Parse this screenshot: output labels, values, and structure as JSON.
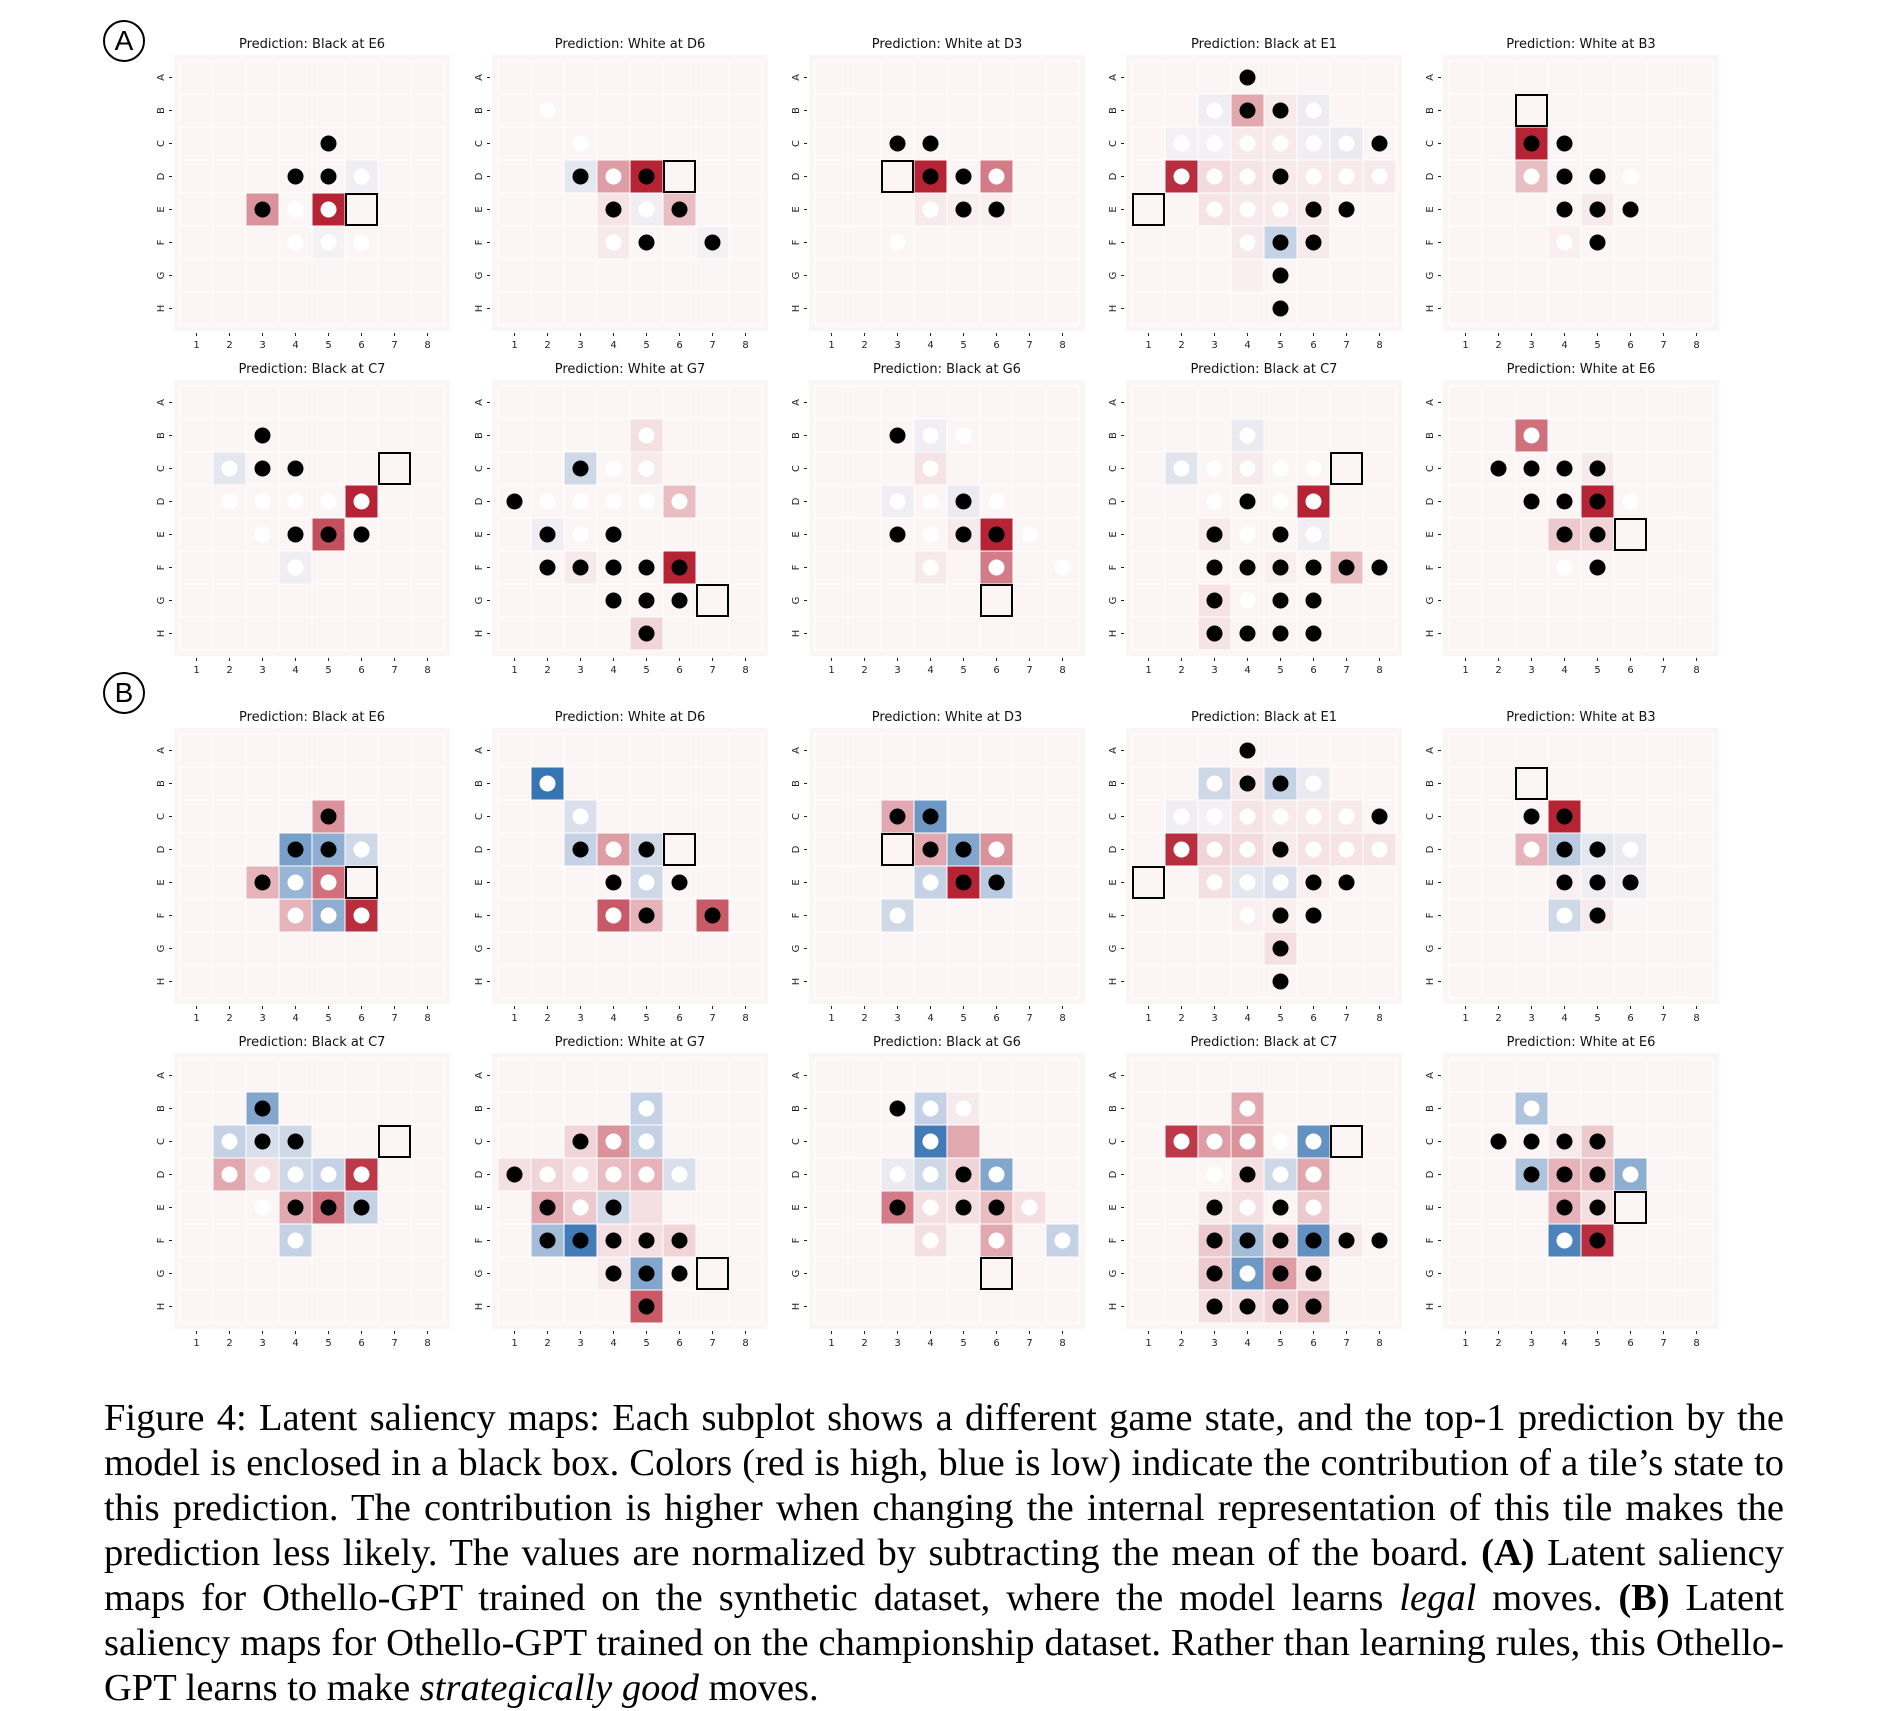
{
  "panels": [
    {
      "label": "A",
      "boards": [
        {
          "title": "Prediction: Black at E6",
          "pred": "E6",
          "heat": {
            "E3": 0.45,
            "E5": 0.95,
            "D6": -0.05,
            "F5": -0.03
          },
          "stones": {
            "C5": "b",
            "D4": "b",
            "D5": "b",
            "D6": "w",
            "E3": "b",
            "E4": "w",
            "E5": "w",
            "F4": "w",
            "F5": "w",
            "F6": "w"
          }
        },
        {
          "title": "Prediction: White at D6",
          "pred": "D6",
          "heat": {
            "D3": -0.1,
            "D4": 0.4,
            "D5": 0.95,
            "E6": 0.25,
            "E4": 0.08,
            "F4": 0.05,
            "E5": -0.05,
            "F7": -0.03
          },
          "stones": {
            "B2": "w",
            "C3": "w",
            "D3": "b",
            "D4": "w",
            "D5": "b",
            "E4": "b",
            "E5": "w",
            "E6": "b",
            "F4": "w",
            "F5": "b",
            "F7": "b"
          }
        },
        {
          "title": "Prediction: White at D3",
          "pred": "D3",
          "heat": {
            "D4": 0.95,
            "D6": 0.55,
            "E4": 0.05,
            "E5": 0.03,
            "E6": 0.03
          },
          "stones": {
            "C3": "b",
            "C4": "b",
            "D4": "b",
            "D5": "b",
            "D6": "w",
            "E4": "w",
            "E5": "b",
            "E6": "b",
            "F3": "w"
          }
        },
        {
          "title": "Prediction: Black at E1",
          "pred": "E1",
          "heat": {
            "B3": -0.05,
            "B4": 0.35,
            "B5": 0.05,
            "B6": -0.06,
            "C2": -0.03,
            "C3": -0.03,
            "C4": 0.05,
            "C5": 0.05,
            "C6": -0.05,
            "C7": -0.08,
            "D2": 0.9,
            "D3": 0.12,
            "D4": 0.08,
            "D5": 0.05,
            "D6": 0.05,
            "D7": 0.05,
            "D8": 0.05,
            "E3": 0.08,
            "E4": 0.05,
            "E5": 0.05,
            "E6": 0.05,
            "F4": 0.05,
            "F5": -0.25,
            "F6": 0.05,
            "G4": 0.03
          },
          "stones": {
            "A4": "b",
            "B3": "w",
            "B4": "b",
            "B5": "b",
            "B6": "w",
            "C2": "w",
            "C3": "w",
            "C4": "w",
            "C5": "w",
            "C6": "w",
            "C7": "w",
            "C8": "b",
            "D2": "w",
            "D3": "w",
            "D4": "w",
            "D5": "b",
            "D6": "w",
            "D7": "w",
            "D8": "w",
            "E3": "w",
            "E4": "w",
            "E5": "w",
            "E6": "b",
            "E7": "b",
            "F4": "w",
            "F5": "b",
            "F6": "b",
            "G5": "b",
            "H5": "b"
          }
        },
        {
          "title": "Prediction: White at B3",
          "pred": "B3",
          "heat": {
            "C3": 0.95,
            "D3": 0.25,
            "E5": 0.05,
            "F4": 0.03
          },
          "stones": {
            "C3": "b",
            "C4": "b",
            "D3": "w",
            "D4": "b",
            "D5": "b",
            "D6": "w",
            "E4": "b",
            "E5": "b",
            "E6": "b",
            "F4": "w",
            "F5": "b"
          }
        }
      ]
    },
    {
      "label": "A2",
      "boards": [
        {
          "title": "Prediction: Black at C7",
          "pred": "C7",
          "heat": {
            "C2": -0.1,
            "D6": 0.95,
            "E5": 0.75,
            "F4": -0.05
          },
          "stones": {
            "B3": "b",
            "C2": "w",
            "C3": "b",
            "C4": "b",
            "D2": "w",
            "D3": "w",
            "D4": "w",
            "D5": "w",
            "D6": "w",
            "E3": "w",
            "E4": "b",
            "E5": "b",
            "E6": "b",
            "F4": "w"
          }
        },
        {
          "title": "Prediction: White at G7",
          "pred": "G7",
          "heat": {
            "B5": 0.1,
            "C3": -0.2,
            "C5": 0.05,
            "D6": 0.25,
            "E2": -0.05,
            "F6": 0.95,
            "H5": 0.15,
            "F3": 0.05
          },
          "stones": {
            "B5": "w",
            "C3": "b",
            "C4": "w",
            "C5": "w",
            "D1": "b",
            "D2": "w",
            "D3": "w",
            "D4": "w",
            "D5": "w",
            "D6": "w",
            "E2": "b",
            "E3": "w",
            "E4": "b",
            "F2": "b",
            "F3": "b",
            "F4": "b",
            "F5": "b",
            "F6": "b",
            "G4": "b",
            "G5": "b",
            "G6": "b",
            "H5": "b"
          }
        },
        {
          "title": "Prediction: Black at G6",
          "pred": "G6",
          "heat": {
            "B4": -0.05,
            "C4": 0.08,
            "D3": -0.05,
            "D5": -0.08,
            "E6": 0.95,
            "F4": 0.05,
            "F6": 0.55,
            "E5": 0.05
          },
          "stones": {
            "B3": "b",
            "B4": "w",
            "B5": "w",
            "C4": "w",
            "D3": "w",
            "D4": "w",
            "D5": "b",
            "D6": "w",
            "E3": "b",
            "E4": "w",
            "E5": "b",
            "E6": "b",
            "E7": "w",
            "F4": "w",
            "F6": "w",
            "F8": "w"
          }
        },
        {
          "title": "Prediction: Black at C7",
          "pred": "C7",
          "heat": {
            "B4": -0.08,
            "C2": -0.12,
            "C4": 0.05,
            "D6": 0.95,
            "E6": -0.05,
            "F7": 0.25,
            "E3": 0.05,
            "G3": 0.08,
            "H3": 0.08,
            "F5": 0.03
          },
          "stones": {
            "B4": "w",
            "C2": "w",
            "C3": "w",
            "C4": "w",
            "C5": "w",
            "C6": "w",
            "D3": "w",
            "D4": "b",
            "D5": "w",
            "D6": "w",
            "E3": "b",
            "E4": "w",
            "E5": "b",
            "E6": "w",
            "F3": "b",
            "F4": "b",
            "F5": "b",
            "F6": "b",
            "F7": "b",
            "F8": "b",
            "G3": "b",
            "G4": "w",
            "G5": "b",
            "G6": "b",
            "H3": "b",
            "H4": "b",
            "H5": "b",
            "H6": "b"
          }
        },
        {
          "title": "Prediction: White at E6",
          "pred": "E6",
          "heat": {
            "B3": 0.6,
            "D5": 0.95,
            "E4": 0.2,
            "E5": 0.15,
            "C5": 0.05
          },
          "stones": {
            "B3": "w",
            "C2": "b",
            "C3": "b",
            "C4": "b",
            "C5": "b",
            "D3": "b",
            "D4": "b",
            "D5": "b",
            "D6": "w",
            "E4": "b",
            "E5": "b",
            "F4": "w",
            "F5": "b"
          }
        }
      ]
    },
    {
      "label": "B",
      "boards": [
        {
          "title": "Prediction: Black at E6",
          "pred": "E6",
          "heat": {
            "C5": 0.45,
            "D4": -0.6,
            "D5": -0.5,
            "D6": -0.2,
            "E3": 0.3,
            "E4": -0.45,
            "E5": 0.6,
            "F4": 0.3,
            "F5": -0.5,
            "F6": 0.9
          },
          "stones": {
            "C5": "b",
            "D4": "b",
            "D5": "b",
            "D6": "w",
            "E3": "b",
            "E4": "w",
            "E5": "w",
            "F4": "w",
            "F5": "w",
            "F6": "w"
          }
        },
        {
          "title": "Prediction: White at D6",
          "pred": "D6",
          "heat": {
            "B2": -0.9,
            "C3": -0.15,
            "D3": -0.25,
            "D4": 0.4,
            "D5": -0.2,
            "E5": -0.2,
            "F4": 0.7,
            "F5": 0.3,
            "F7": 0.7
          },
          "stones": {
            "B2": "w",
            "C3": "w",
            "D3": "b",
            "D4": "w",
            "D5": "b",
            "E4": "b",
            "E5": "w",
            "E6": "b",
            "F4": "w",
            "F5": "b",
            "F7": "b"
          }
        },
        {
          "title": "Prediction: White at D3",
          "pred": "D3",
          "heat": {
            "C3": 0.35,
            "C4": -0.65,
            "D4": 0.35,
            "D5": -0.55,
            "D6": 0.45,
            "E4": -0.25,
            "E5": 0.95,
            "E6": -0.3,
            "F3": -0.2
          },
          "stones": {
            "C3": "b",
            "C4": "b",
            "D4": "b",
            "D5": "b",
            "D6": "w",
            "E4": "w",
            "E5": "b",
            "E6": "b",
            "F3": "w"
          }
        },
        {
          "title": "Prediction: Black at E1",
          "pred": "E1",
          "heat": {
            "B3": -0.2,
            "B4": 0.05,
            "B5": -0.25,
            "B6": -0.08,
            "C2": -0.05,
            "C3": -0.03,
            "C4": 0.08,
            "C5": 0.05,
            "C6": 0.05,
            "C7": 0.05,
            "D2": 0.9,
            "D3": 0.15,
            "D4": 0.12,
            "D5": 0.05,
            "D6": 0.08,
            "D7": 0.08,
            "D8": 0.08,
            "E3": 0.1,
            "E4": -0.1,
            "E5": -0.15,
            "F4": 0.03,
            "F5": 0.03,
            "G5": 0.1,
            "E6": 0.03
          },
          "stones": {
            "A4": "b",
            "B3": "w",
            "B4": "b",
            "B5": "b",
            "B6": "w",
            "C2": "w",
            "C3": "w",
            "C4": "w",
            "C5": "w",
            "C6": "w",
            "C7": "w",
            "C8": "b",
            "D2": "w",
            "D3": "w",
            "D4": "w",
            "D5": "b",
            "D6": "w",
            "D7": "w",
            "D8": "w",
            "E3": "w",
            "E4": "w",
            "E5": "w",
            "E6": "b",
            "E7": "b",
            "F4": "w",
            "F5": "b",
            "F6": "b",
            "G5": "b",
            "H5": "b"
          }
        },
        {
          "title": "Prediction: White at B3",
          "pred": "B3",
          "heat": {
            "C4": 0.95,
            "D3": 0.3,
            "D4": -0.3,
            "D5": -0.1,
            "D6": -0.08,
            "E5": -0.05,
            "E6": -0.05,
            "F4": -0.2,
            "F5": 0.05,
            "E4": 0.03
          },
          "stones": {
            "C3": "b",
            "C4": "b",
            "D3": "w",
            "D4": "b",
            "D5": "b",
            "D6": "w",
            "E4": "b",
            "E5": "b",
            "E6": "b",
            "F4": "w",
            "F5": "b"
          }
        }
      ]
    },
    {
      "label": "B2",
      "boards": [
        {
          "title": "Prediction: Black at C7",
          "pred": "C7",
          "heat": {
            "B3": -0.55,
            "C2": -0.25,
            "C3": -0.15,
            "C4": -0.2,
            "D2": 0.35,
            "D3": 0.1,
            "D4": -0.2,
            "D5": -0.25,
            "D6": 0.85,
            "E4": 0.35,
            "E5": 0.6,
            "E6": -0.25,
            "F4": -0.25
          },
          "stones": {
            "B3": "b",
            "C2": "w",
            "C3": "b",
            "C4": "b",
            "D2": "w",
            "D3": "w",
            "D4": "w",
            "D5": "w",
            "D6": "w",
            "E3": "w",
            "E4": "b",
            "E5": "b",
            "E6": "b",
            "F4": "w"
          }
        },
        {
          "title": "Prediction: White at G7",
          "pred": "G7",
          "heat": {
            "B5": -0.25,
            "C3": 0.15,
            "C4": 0.45,
            "C5": -0.25,
            "D1": 0.1,
            "D2": 0.15,
            "D3": 0.1,
            "D4": 0.25,
            "D5": 0.3,
            "D6": -0.15,
            "E2": 0.35,
            "E3": 0.2,
            "E4": -0.2,
            "E5": 0.1,
            "F2": -0.4,
            "F3": -0.85,
            "F4": 0.1,
            "F5": 0.1,
            "F6": 0.15,
            "G5": -0.55,
            "H5": 0.7,
            "G4": 0.05
          },
          "stones": {
            "B5": "w",
            "C3": "b",
            "C4": "w",
            "C5": "w",
            "D1": "b",
            "D2": "w",
            "D3": "w",
            "D4": "w",
            "D5": "w",
            "D6": "w",
            "E2": "b",
            "E3": "w",
            "E4": "b",
            "F2": "b",
            "F3": "b",
            "F4": "b",
            "F5": "b",
            "F6": "b",
            "G4": "b",
            "G5": "b",
            "G6": "b",
            "H5": "b"
          }
        },
        {
          "title": "Prediction: Black at G6",
          "pred": "G6",
          "heat": {
            "B4": -0.25,
            "B5": 0.05,
            "C4": -0.85,
            "C5": 0.35,
            "D3": -0.08,
            "D4": -0.2,
            "D5": 0.15,
            "D6": -0.55,
            "E3": 0.55,
            "E4": 0.1,
            "E5": 0.1,
            "E6": 0.25,
            "E7": 0.1,
            "F4": 0.1,
            "F6": 0.35,
            "F8": -0.25
          },
          "stones": {
            "B3": "b",
            "B4": "w",
            "B5": "w",
            "C4": "w",
            "D3": "w",
            "D4": "w",
            "D5": "b",
            "D6": "w",
            "E3": "b",
            "E4": "w",
            "E5": "b",
            "E6": "b",
            "E7": "w",
            "F4": "w",
            "F6": "w",
            "F8": "w"
          }
        },
        {
          "title": "Prediction: Black at C7",
          "pred": "C7",
          "heat": {
            "B4": 0.35,
            "C2": 0.85,
            "C3": 0.4,
            "C4": 0.45,
            "C6": -0.7,
            "D4": 0.1,
            "D5": -0.2,
            "D6": 0.35,
            "E3": 0.05,
            "E4": 0.1,
            "E6": 0.2,
            "F3": 0.2,
            "F4": -0.4,
            "F5": 0.15,
            "F6": -0.7,
            "G3": 0.2,
            "G4": -0.65,
            "G5": 0.4,
            "G6": 0.1,
            "H3": 0.1,
            "H4": 0.1,
            "H5": 0.15,
            "H6": 0.25,
            "F7": 0.05
          },
          "stones": {
            "B4": "w",
            "C2": "w",
            "C3": "w",
            "C4": "w",
            "C5": "w",
            "C6": "w",
            "D3": "w",
            "D4": "b",
            "D5": "w",
            "D6": "w",
            "E3": "b",
            "E4": "w",
            "E5": "b",
            "E6": "w",
            "F3": "b",
            "F4": "b",
            "F5": "b",
            "F6": "b",
            "F7": "b",
            "F8": "b",
            "G3": "b",
            "G4": "w",
            "G5": "b",
            "G6": "b",
            "H3": "b",
            "H4": "b",
            "H5": "b",
            "H6": "b"
          }
        },
        {
          "title": "Prediction: White at E6",
          "pred": "E6",
          "heat": {
            "B3": -0.35,
            "C5": 0.2,
            "D3": -0.35,
            "D4": 0.3,
            "D5": 0.25,
            "D6": -0.5,
            "E4": 0.3,
            "E5": 0.1,
            "F4": -0.8,
            "F5": 0.9,
            "C4": 0.05
          },
          "stones": {
            "B3": "w",
            "C2": "b",
            "C3": "b",
            "C4": "b",
            "C5": "b",
            "D3": "b",
            "D4": "b",
            "D5": "b",
            "D6": "w",
            "E4": "b",
            "E5": "b",
            "F4": "w",
            "F5": "b"
          }
        }
      ]
    }
  ],
  "axis": {
    "rows": [
      "A",
      "B",
      "C",
      "D",
      "E",
      "F",
      "G",
      "H"
    ],
    "cols": [
      "1",
      "2",
      "3",
      "4",
      "5",
      "6",
      "7",
      "8"
    ]
  },
  "colors": {
    "high": "#b2182b",
    "low": "#2166ac",
    "neutral": "#fbf5f6",
    "black_stone": "#000000",
    "white_stone": "#ffffff"
  },
  "caption": {
    "lead": "Figure 4: Latent saliency maps: Each subplot shows a different game state, and the top-1 prediction by the model is enclosed in a black box. Colors (red is high, blue is low) indicate the contribution of a tile’s state to this prediction. The contribution is higher when changing the internal representation of this tile makes the prediction less likely. The values are normalized by subtracting the mean of the board.",
    "a_tag": "(A)",
    "a_text_1": "Latent saliency maps for Othello-GPT trained on the synthetic dataset, where the model learns",
    "a_em": "legal",
    "a_text_2": "moves.",
    "b_tag": "(B)",
    "b_text_1": "Latent saliency maps for Othello-GPT trained on the championship dataset. Rather than learning rules, this Othello-GPT learns to make",
    "b_em": "strategically good",
    "b_text_2": "moves."
  }
}
